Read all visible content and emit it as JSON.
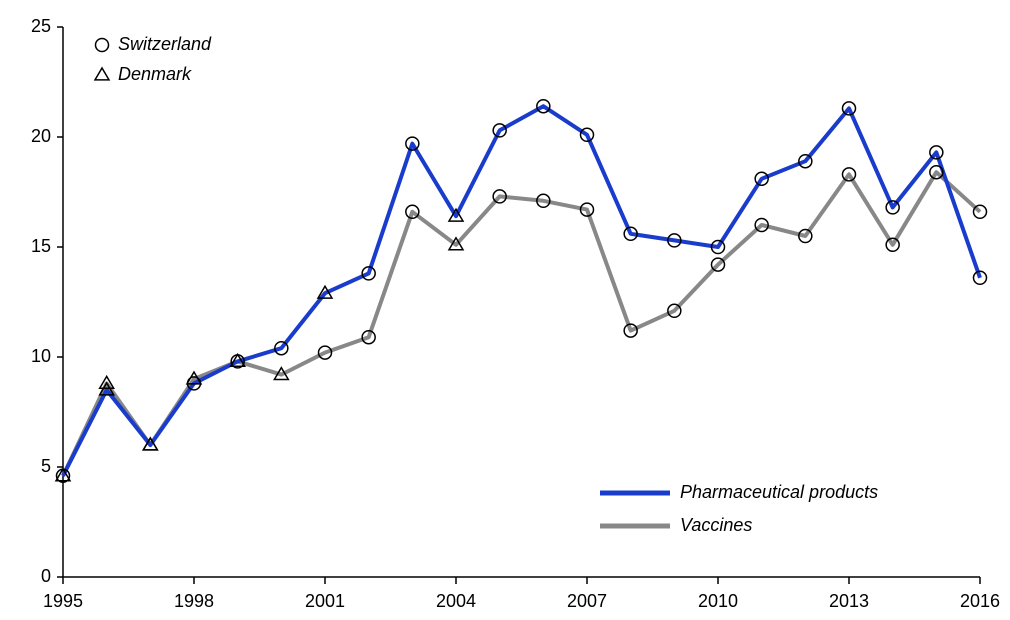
{
  "chart_data": {
    "type": "line",
    "x": [
      1995,
      1996,
      1997,
      1998,
      1999,
      2000,
      2001,
      2002,
      2003,
      2004,
      2005,
      2006,
      2007,
      2008,
      2009,
      2010,
      2011,
      2012,
      2013,
      2014,
      2015,
      2016
    ],
    "series": [
      {
        "name": "Pharmaceutical products",
        "color": "#1a3ccc",
        "values": [
          4.6,
          8.5,
          6.0,
          8.8,
          9.8,
          10.4,
          12.9,
          13.8,
          19.7,
          16.4,
          20.3,
          21.4,
          20.1,
          15.6,
          15.3,
          15.0,
          18.1,
          18.9,
          21.3,
          16.8,
          19.3,
          13.6
        ],
        "markers": [
          "circle",
          "triangle",
          "triangle",
          "circle",
          "circle",
          "circle",
          "triangle",
          "circle",
          "circle",
          "triangle",
          "circle",
          "circle",
          "circle",
          "circle",
          "circle",
          "circle",
          "circle",
          "circle",
          "circle",
          "circle",
          "circle",
          "circle"
        ]
      },
      {
        "name": "Vaccines",
        "color": "#888888",
        "values": [
          4.6,
          8.8,
          6.0,
          9.0,
          9.8,
          9.2,
          10.2,
          10.9,
          16.6,
          15.1,
          17.3,
          17.1,
          16.7,
          11.2,
          12.1,
          14.2,
          16.0,
          15.5,
          18.3,
          15.1,
          18.4,
          16.6
        ],
        "markers": [
          "triangle",
          "triangle",
          "triangle",
          "triangle",
          "triangle",
          "triangle",
          "circle",
          "circle",
          "circle",
          "triangle",
          "circle",
          "circle",
          "circle",
          "circle",
          "circle",
          "circle",
          "circle",
          "circle",
          "circle",
          "circle",
          "circle",
          "circle"
        ]
      }
    ],
    "marker_legend": [
      {
        "label": "Switzerland",
        "shape": "circle"
      },
      {
        "label": "Denmark",
        "shape": "triangle"
      }
    ],
    "xlim": [
      1995,
      2016
    ],
    "xticks": [
      1995,
      1998,
      2001,
      2004,
      2007,
      2010,
      2013,
      2016
    ],
    "ylim": [
      0,
      25
    ],
    "yticks": [
      0,
      5,
      10,
      15,
      20,
      25
    ],
    "legend": "lower-right",
    "grid": false
  }
}
